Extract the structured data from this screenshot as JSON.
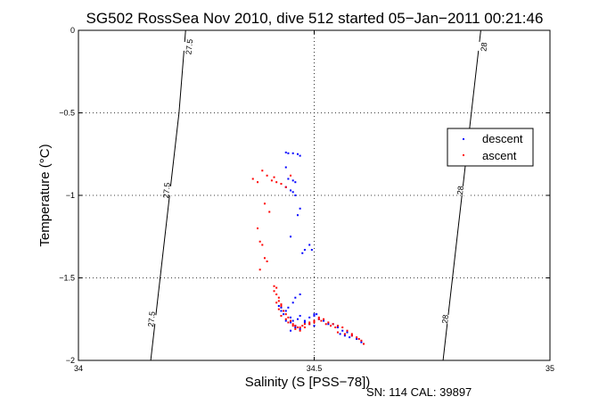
{
  "chart_data": {
    "type": "scatter",
    "title": "SG502 RossSea Nov 2010, dive 512 started 05−Jan−2011 00:21:46",
    "xlabel": "Salinity (S [PSS−78])",
    "ylabel": "Temperature (°C)",
    "xlim": [
      34,
      35
    ],
    "ylim": [
      -2,
      0
    ],
    "xticks": [
      34,
      34.5,
      35
    ],
    "xtick_labels": [
      "34",
      "34.5",
      "35"
    ],
    "yticks": [
      0,
      -0.5,
      -1,
      -1.5,
      -2
    ],
    "ytick_labels": [
      "0",
      "−0.5",
      "−1",
      "−1.5",
      "−2"
    ],
    "grid": true,
    "legend_position": "upper-right",
    "series": [
      {
        "name": "descent",
        "color": "#0000ff",
        "x": [
          34.44,
          34.445,
          34.455,
          34.465,
          34.47,
          34.445,
          34.455,
          34.46,
          34.44,
          34.45,
          34.455,
          34.44,
          34.46,
          34.47,
          34.465,
          34.475,
          34.48,
          34.45,
          34.49,
          34.495,
          34.47,
          34.46,
          34.455,
          34.445,
          34.44,
          34.5,
          34.45,
          34.455,
          34.465,
          34.47,
          34.48,
          34.49,
          34.5,
          34.505,
          34.51,
          34.52,
          34.53,
          34.54,
          34.55,
          34.56,
          34.57,
          34.58,
          34.59,
          34.6,
          34.605,
          34.45,
          34.44,
          34.46,
          34.49,
          34.5,
          34.47,
          34.435,
          34.43,
          34.43,
          34.425,
          34.48,
          34.46,
          34.45,
          34.555,
          34.565,
          34.575
        ],
        "y": [
          -0.74,
          -0.745,
          -0.745,
          -0.75,
          -0.76,
          -0.9,
          -0.91,
          -0.92,
          -0.95,
          -0.97,
          -0.98,
          -0.83,
          -1.0,
          -1.08,
          -1.12,
          -1.35,
          -1.33,
          -1.25,
          -1.3,
          -1.33,
          -1.6,
          -1.62,
          -1.65,
          -1.68,
          -1.7,
          -1.72,
          -1.74,
          -1.76,
          -1.75,
          -1.73,
          -1.76,
          -1.74,
          -1.73,
          -1.72,
          -1.75,
          -1.76,
          -1.78,
          -1.78,
          -1.8,
          -1.82,
          -1.83,
          -1.85,
          -1.87,
          -1.89,
          -1.9,
          -1.77,
          -1.76,
          -1.79,
          -1.78,
          -1.79,
          -1.81,
          -1.72,
          -1.7,
          -1.68,
          -1.67,
          -1.77,
          -1.8,
          -1.82,
          -1.84,
          -1.85,
          -1.86
        ]
      },
      {
        "name": "ascent",
        "color": "#ff0000",
        "x": [
          34.37,
          34.38,
          34.39,
          34.4,
          34.41,
          34.415,
          34.42,
          34.43,
          34.44,
          34.45,
          34.395,
          34.405,
          34.38,
          34.385,
          34.39,
          34.395,
          34.4,
          34.385,
          34.415,
          34.42,
          34.425,
          34.43,
          34.435,
          34.44,
          34.445,
          34.45,
          34.455,
          34.46,
          34.465,
          34.47,
          34.475,
          34.48,
          34.49,
          34.5,
          34.51,
          34.52,
          34.53,
          34.54,
          34.55,
          34.56,
          34.57,
          34.58,
          34.59,
          34.6,
          34.605,
          34.43,
          34.44,
          34.42,
          34.415,
          34.425,
          34.445,
          34.455,
          34.46,
          34.47,
          34.48,
          34.49,
          34.5,
          34.51,
          34.515,
          34.525,
          34.535,
          34.545,
          34.55,
          34.565,
          34.58,
          34.595,
          34.425,
          34.42,
          34.43
        ],
        "y": [
          -0.9,
          -0.92,
          -0.85,
          -0.88,
          -0.91,
          -0.89,
          -0.92,
          -0.93,
          -0.95,
          -0.88,
          -1.05,
          -1.1,
          -1.2,
          -1.28,
          -1.3,
          -1.38,
          -1.4,
          -1.45,
          -1.55,
          -1.6,
          -1.64,
          -1.66,
          -1.7,
          -1.72,
          -1.74,
          -1.76,
          -1.78,
          -1.79,
          -1.8,
          -1.8,
          -1.79,
          -1.78,
          -1.77,
          -1.76,
          -1.74,
          -1.75,
          -1.77,
          -1.78,
          -1.79,
          -1.8,
          -1.82,
          -1.84,
          -1.86,
          -1.88,
          -1.9,
          -1.73,
          -1.75,
          -1.65,
          -1.58,
          -1.69,
          -1.77,
          -1.79,
          -1.81,
          -1.82,
          -1.8,
          -1.78,
          -1.77,
          -1.75,
          -1.76,
          -1.78,
          -1.79,
          -1.8,
          -1.83,
          -1.84,
          -1.85,
          -1.87,
          -1.62,
          -1.56,
          -1.67
        ]
      }
    ],
    "contours": [
      {
        "label": "27.5",
        "points": [
          [
            34.1533,
            -2.0
          ],
          [
            34.2133,
            -0.5
          ],
          [
            34.2273,
            0.0
          ]
        ],
        "label_positions": [
          [
            34.155,
            -1.75
          ],
          [
            34.187,
            -0.97
          ],
          [
            34.235,
            -0.1
          ]
        ]
      },
      {
        "label": "28",
        "points": [
          [
            34.7733,
            -2.0
          ],
          [
            34.8333,
            -0.5
          ],
          [
            34.8533,
            0.0
          ]
        ],
        "label_positions": [
          [
            34.778,
            -1.75
          ],
          [
            34.81,
            -0.97
          ],
          [
            34.86,
            -0.1
          ]
        ]
      }
    ]
  },
  "footer": {
    "note": "SN: 114  CAL: 39897"
  }
}
